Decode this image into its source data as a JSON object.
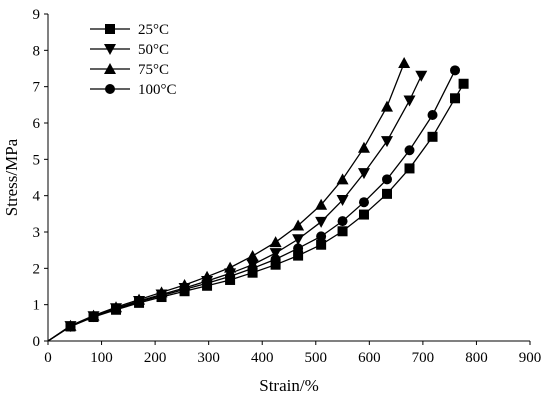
{
  "chart_data": {
    "type": "line",
    "xlabel": "Strain/%",
    "ylabel": "Stress/MPa",
    "xlim": [
      0,
      900
    ],
    "ylim": [
      0,
      9
    ],
    "xticks": [
      "0",
      "100",
      "200",
      "300",
      "400",
      "500",
      "600",
      "700",
      "800",
      "900"
    ],
    "yticks": [
      "0",
      "1",
      "2",
      "3",
      "4",
      "5",
      "6",
      "7",
      "8",
      "9"
    ],
    "grid": false,
    "legend_position": "top-left",
    "series": [
      {
        "name": "25°C",
        "marker": "square",
        "x": [
          0,
          42,
          85,
          127,
          170,
          212,
          255,
          297,
          340,
          382,
          425,
          467,
          510,
          550,
          590,
          633,
          675,
          718,
          760,
          776
        ],
        "y": [
          0,
          0.4,
          0.66,
          0.86,
          1.05,
          1.21,
          1.37,
          1.52,
          1.68,
          1.88,
          2.1,
          2.35,
          2.65,
          3.02,
          3.48,
          4.05,
          4.75,
          5.62,
          6.68,
          7.08
        ]
      },
      {
        "name": "50°C",
        "marker": "triangle-down",
        "x": [
          0,
          42,
          85,
          127,
          170,
          212,
          255,
          297,
          340,
          382,
          425,
          467,
          510,
          550,
          590,
          633,
          675,
          697
        ],
        "y": [
          0,
          0.41,
          0.68,
          0.9,
          1.1,
          1.28,
          1.46,
          1.65,
          1.86,
          2.1,
          2.42,
          2.8,
          3.28,
          3.88,
          4.62,
          5.5,
          6.62,
          7.3
        ]
      },
      {
        "name": "75°C",
        "marker": "triangle-up",
        "x": [
          0,
          42,
          85,
          127,
          170,
          212,
          255,
          297,
          340,
          382,
          425,
          467,
          510,
          550,
          590,
          633,
          665
        ],
        "y": [
          0,
          0.42,
          0.7,
          0.93,
          1.14,
          1.34,
          1.54,
          1.77,
          2.02,
          2.34,
          2.72,
          3.18,
          3.75,
          4.45,
          5.32,
          6.45,
          7.65
        ]
      },
      {
        "name": "100°C",
        "marker": "circle",
        "x": [
          0,
          42,
          85,
          127,
          170,
          212,
          255,
          297,
          340,
          382,
          425,
          467,
          510,
          550,
          590,
          633,
          675,
          718,
          760
        ],
        "y": [
          0,
          0.4,
          0.67,
          0.88,
          1.08,
          1.25,
          1.42,
          1.59,
          1.78,
          2.0,
          2.25,
          2.55,
          2.88,
          3.3,
          3.82,
          4.45,
          5.25,
          6.22,
          7.45
        ]
      }
    ]
  }
}
